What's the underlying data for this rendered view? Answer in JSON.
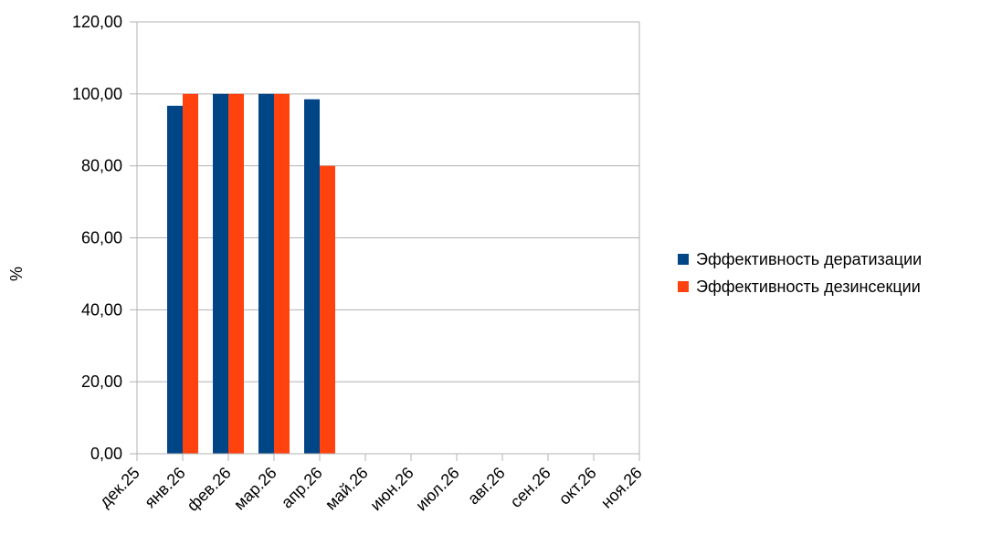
{
  "chart_data": {
    "type": "bar",
    "title": "",
    "xlabel": "",
    "ylabel": "%",
    "ylim": [
      0,
      120
    ],
    "yticks": [
      "0,00",
      "20,00",
      "40,00",
      "60,00",
      "80,00",
      "100,00",
      "120,00"
    ],
    "ytick_values": [
      0,
      20,
      40,
      60,
      80,
      100,
      120
    ],
    "grid": true,
    "legend_position": "right",
    "x_ticks": [
      "дек.25",
      "янв.26",
      "фев.26",
      "мар.26",
      "апр.26",
      "май.26",
      "июн.26",
      "июл.26",
      "авг.26",
      "сен.26",
      "окт.26",
      "ноя.26"
    ],
    "categories": [
      "янв.26",
      "фев.26",
      "мар.26",
      "апр.26"
    ],
    "series": [
      {
        "name": "Эффективность дератизации",
        "color": "#004586",
        "values": [
          96.7,
          100,
          100,
          98.5
        ]
      },
      {
        "name": "Эффективность дезинсекции",
        "color": "#ff420e",
        "values": [
          100,
          100,
          100,
          80
        ]
      }
    ]
  }
}
